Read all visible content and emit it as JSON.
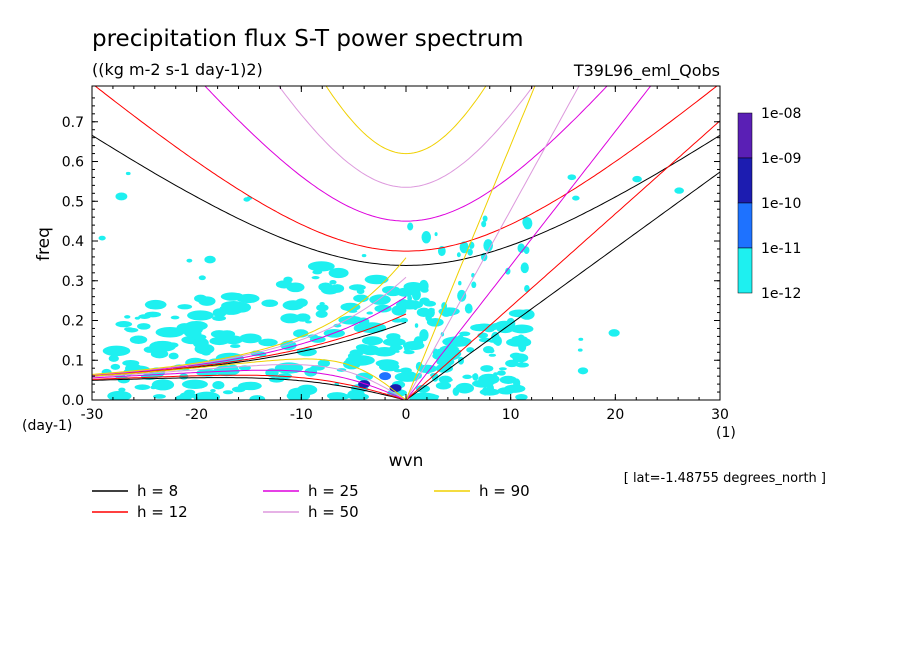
{
  "chart_data": {
    "type": "heatmap",
    "title": "precipitation flux S-T power spectrum",
    "subtitle": "((kg m-2 s-1 day-1)2)",
    "run_label": "T39L96_eml_Qobs",
    "xlabel": "wvn",
    "ylabel": "freq",
    "x_unit": "(1)",
    "y_unit": "(day-1)",
    "xlim": [
      -30,
      30
    ],
    "ylim": [
      0,
      0.79
    ],
    "x_ticks": [
      -30,
      -20,
      -10,
      0,
      10,
      20,
      30
    ],
    "x_tick_labels": [
      "-30",
      "-20",
      "-10",
      "0",
      "10",
      "20",
      "30"
    ],
    "y_ticks": [
      0,
      0.1,
      0.2,
      0.3,
      0.4,
      0.5,
      0.6,
      0.7
    ],
    "y_tick_labels": [
      "0.0",
      "0.1",
      "0.2",
      "0.3",
      "0.4",
      "0.5",
      "0.6",
      "0.7"
    ],
    "grid": false,
    "colorbar": {
      "labels": [
        "1e-08",
        "1e-09",
        "1e-10",
        "1e-11",
        "1e-12"
      ],
      "colors": [
        "#5a1fb5",
        "#1c1cb0",
        "#1e72ff",
        "#1ef0f0"
      ]
    },
    "footnote": "[ lat=-1.48755 degrees_north ]",
    "dispersion_curves": [
      {
        "label": "h =  8",
        "color": "#000000"
      },
      {
        "label": "h = 12",
        "color": "#ff0000"
      },
      {
        "label": "h = 25",
        "color": "#dd00dd"
      },
      {
        "label": "h = 50",
        "color": "#dd99dd"
      },
      {
        "label": "h = 90",
        "color": "#f0d000"
      }
    ],
    "power_regions": [
      {
        "level": 0,
        "x": -2,
        "y": 0.06
      },
      {
        "level": 1,
        "x": -4,
        "y": 0.04
      },
      {
        "level": 1,
        "x": -1,
        "y": 0.03
      }
    ]
  }
}
